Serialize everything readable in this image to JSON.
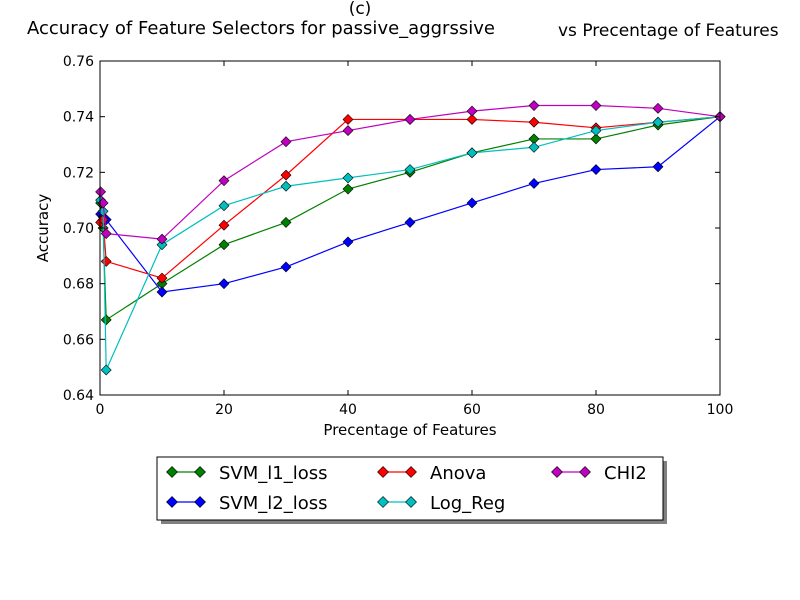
{
  "chart_data": {
    "type": "line",
    "title_top": "(c)",
    "title_left": "Accuracy of Feature Selectors for passive_aggrssive",
    "title_right": "vs Precentage of Features",
    "xlabel": "Precentage of Features",
    "ylabel": "Accuracy",
    "xlim": [
      0,
      100
    ],
    "ylim": [
      0.64,
      0.76
    ],
    "x_ticks": [
      "0",
      "20",
      "40",
      "60",
      "80",
      "100"
    ],
    "y_ticks": [
      "0.64",
      "0.66",
      "0.68",
      "0.70",
      "0.72",
      "0.74",
      "0.76"
    ],
    "grid": false,
    "legend_position": "below plot, 3 columns",
    "series": [
      {
        "name": "SVM_l1_loss",
        "color": "#008000",
        "x": [
          0.1,
          0.5,
          1,
          10,
          20,
          30,
          40,
          50,
          60,
          70,
          80,
          90,
          100
        ],
        "y": [
          0.709,
          0.7,
          0.667,
          0.68,
          0.694,
          0.702,
          0.714,
          0.72,
          0.727,
          0.732,
          0.732,
          0.737,
          0.74
        ]
      },
      {
        "name": "SVM_l2_loss",
        "color": "#0000ff",
        "x": [
          0.1,
          0.5,
          1,
          10,
          20,
          30,
          40,
          50,
          60,
          70,
          80,
          90,
          100
        ],
        "y": [
          0.705,
          0.704,
          0.703,
          0.677,
          0.68,
          0.686,
          0.695,
          0.702,
          0.709,
          0.716,
          0.721,
          0.722,
          0.74
        ]
      },
      {
        "name": "Anova",
        "color": "#ff0000",
        "x": [
          0.1,
          0.5,
          1,
          10,
          20,
          30,
          40,
          50,
          60,
          70,
          80,
          90,
          100
        ],
        "y": [
          0.702,
          0.703,
          0.688,
          0.682,
          0.701,
          0.719,
          0.739,
          0.739,
          0.739,
          0.738,
          0.736,
          0.738,
          0.74
        ]
      },
      {
        "name": "Log_Reg",
        "color": "#00bfbf",
        "x": [
          0.1,
          0.5,
          1,
          10,
          20,
          30,
          40,
          50,
          60,
          70,
          80,
          90,
          100
        ],
        "y": [
          0.71,
          0.706,
          0.649,
          0.694,
          0.708,
          0.715,
          0.718,
          0.721,
          0.727,
          0.729,
          0.735,
          0.738,
          0.74
        ]
      },
      {
        "name": "CHI2",
        "color": "#bf00bf",
        "x": [
          0.1,
          0.5,
          1,
          10,
          20,
          30,
          40,
          50,
          60,
          70,
          80,
          90,
          100
        ],
        "y": [
          0.713,
          0.709,
          0.698,
          0.696,
          0.717,
          0.731,
          0.735,
          0.739,
          0.742,
          0.744,
          0.744,
          0.743,
          0.74
        ]
      }
    ]
  }
}
